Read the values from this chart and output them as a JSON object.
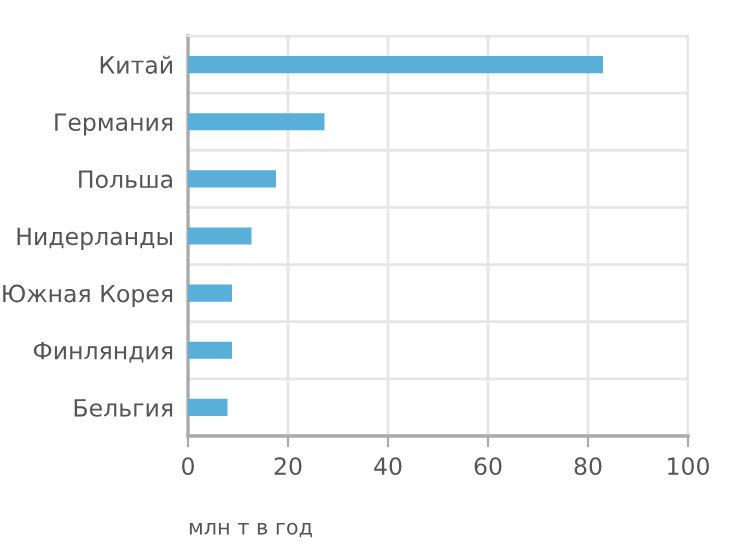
{
  "chart_data": {
    "type": "bar",
    "orientation": "horizontal",
    "categories": [
      "Китай",
      "Германия",
      "Польша",
      "Нидерланды",
      "Южная Корея",
      "Финляндия",
      "Бельгия"
    ],
    "values": [
      83,
      27.3,
      17.6,
      12.7,
      8.8,
      8.8,
      7.9
    ],
    "color": "#5aafd9",
    "xlim": [
      0,
      100
    ],
    "xticks": [
      0,
      20,
      40,
      60,
      80,
      100
    ],
    "xlabel": "млн т в год",
    "grid": true
  }
}
